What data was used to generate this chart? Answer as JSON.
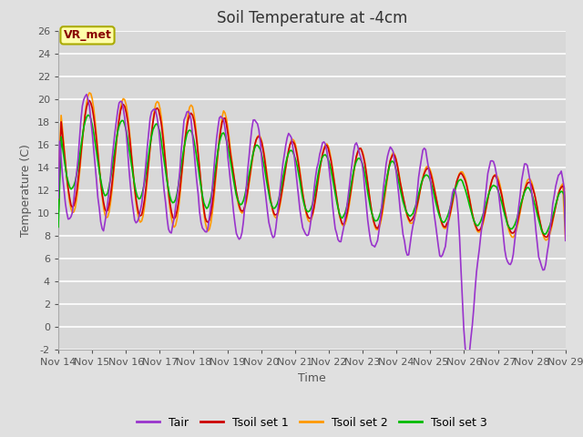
{
  "title": "Soil Temperature at -4cm",
  "xlabel": "Time",
  "ylabel": "Temperature (C)",
  "ylim": [
    -2,
    26
  ],
  "yticks": [
    -2,
    0,
    2,
    4,
    6,
    8,
    10,
    12,
    14,
    16,
    18,
    20,
    22,
    24,
    26
  ],
  "xtick_labels": [
    "Nov 14",
    "Nov 15",
    "Nov 16",
    "Nov 17",
    "Nov 18",
    "Nov 19",
    "Nov 20",
    "Nov 21",
    "Nov 22",
    "Nov 23",
    "Nov 24",
    "Nov 25",
    "Nov 26",
    "Nov 27",
    "Nov 28",
    "Nov 29"
  ],
  "colors": {
    "Tair": "#9933cc",
    "Tsoil1": "#cc0000",
    "Tsoil2": "#ff9900",
    "Tsoil3": "#00bb00"
  },
  "legend_labels": [
    "Tair",
    "Tsoil set 1",
    "Tsoil set 2",
    "Tsoil set 3"
  ],
  "annotation_text": "VR_met",
  "bg_color": "#e0e0e0",
  "plot_bg_color": "#d8d8d8",
  "grid_color": "#c8c8c8",
  "title_fontsize": 12,
  "axis_fontsize": 9,
  "tick_fontsize": 8
}
